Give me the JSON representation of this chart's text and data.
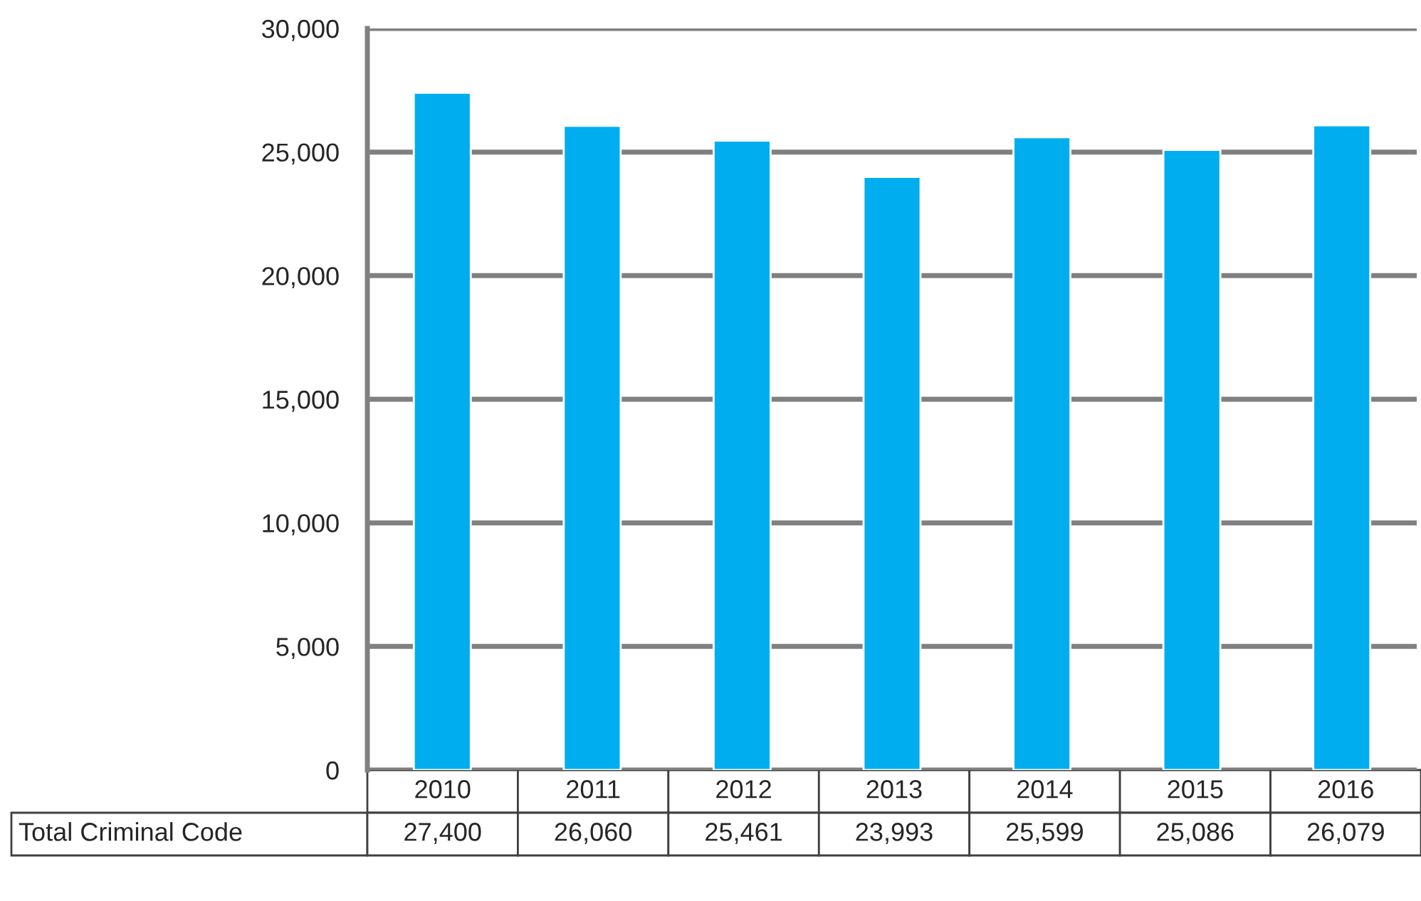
{
  "chart_data": {
    "type": "bar",
    "categories": [
      "2010",
      "2011",
      "2012",
      "2013",
      "2014",
      "2015",
      "2016"
    ],
    "series": [
      {
        "name": "Total Criminal Code",
        "color": "#00aeef",
        "values": [
          27400,
          26060,
          25461,
          23993,
          25599,
          25086,
          26079
        ],
        "value_labels": [
          "27,400",
          "26,060",
          "25,461",
          "23,993",
          "25,599",
          "25,086",
          "26,079"
        ]
      }
    ],
    "ylim": [
      0,
      30000
    ],
    "yticks": [
      {
        "value": 0,
        "label": "0"
      },
      {
        "value": 5000,
        "label": "5,000"
      },
      {
        "value": 10000,
        "label": "10,000"
      },
      {
        "value": 15000,
        "label": "15,000"
      },
      {
        "value": 20000,
        "label": "20,000"
      },
      {
        "value": 25000,
        "label": "25,000"
      },
      {
        "value": 30000,
        "label": "30,000"
      }
    ],
    "grid": "y",
    "legend": false
  }
}
